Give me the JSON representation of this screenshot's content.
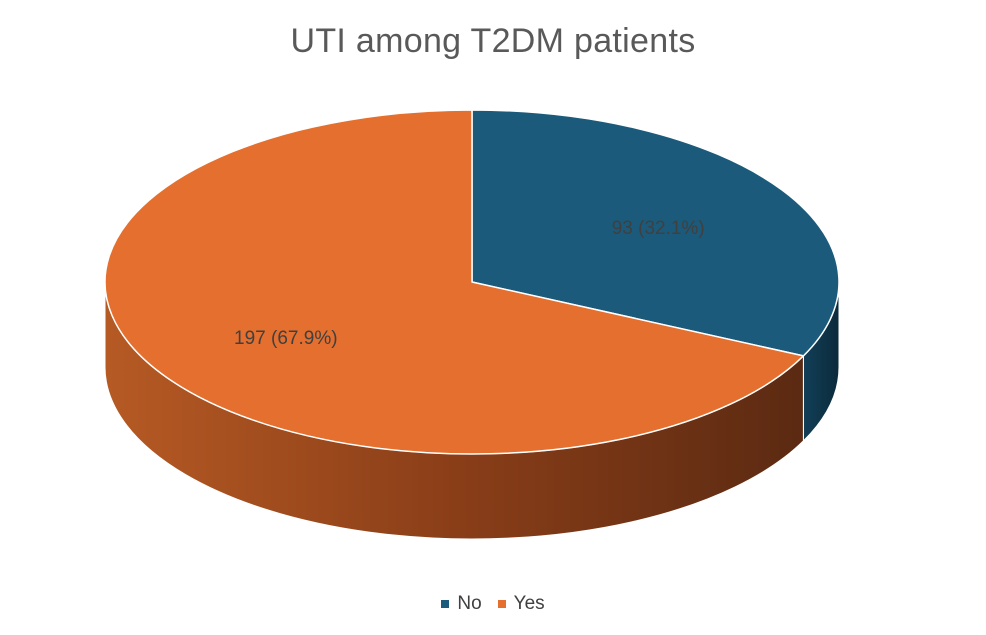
{
  "chart_data": {
    "type": "pie",
    "title": "UTI among T2DM patients",
    "slices": [
      {
        "name": "No",
        "value": 93,
        "label": "93 (32.1%)",
        "color": "#1B5A7A"
      },
      {
        "name": "Yes",
        "value": 197,
        "label": "197 (67.9%)",
        "color": "#E46F2E"
      }
    ],
    "legend_position": "bottom",
    "style": "3d"
  }
}
